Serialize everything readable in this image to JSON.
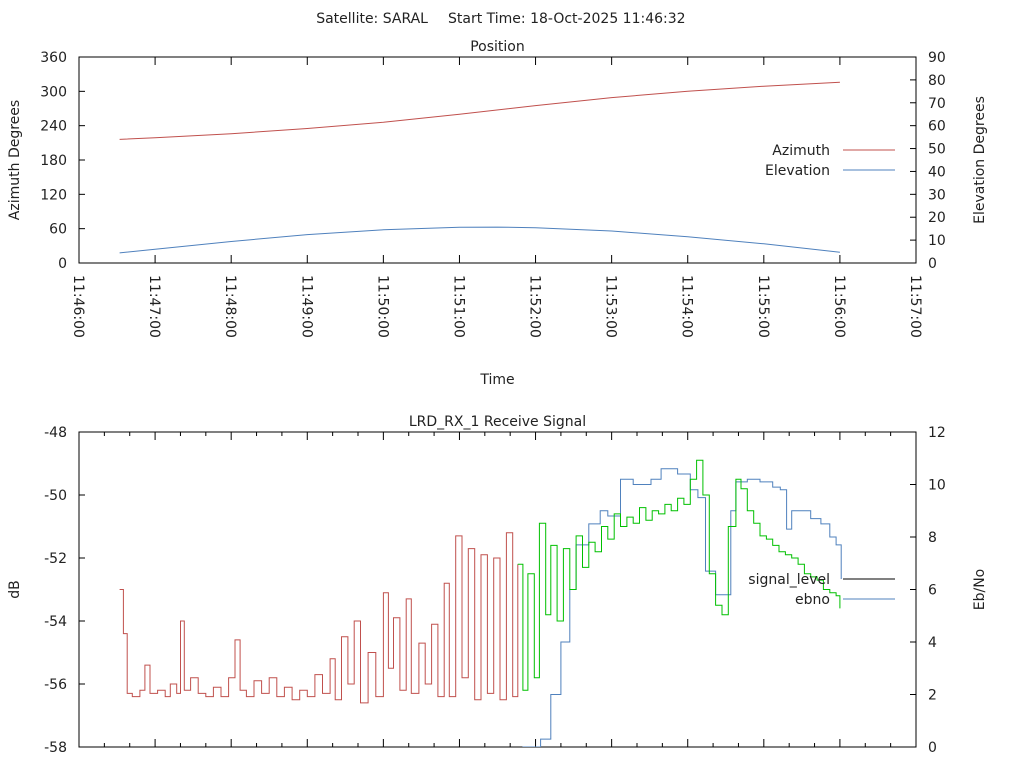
{
  "header": {
    "satellite": "Satellite: SARAL",
    "start_time": "Start Time: 18-Oct-2025 11:46:32"
  },
  "colors": {
    "azimuth": "#c0504d",
    "elevation": "#4f81bd",
    "signal_level_red": "#c0504d",
    "signal_level_green": "#00c000",
    "signal_level_legend": "#000000",
    "ebno": "#4f81bd"
  },
  "chart_data": [
    {
      "type": "line",
      "title": "Position",
      "xlabel": "Time",
      "ylabel": "Azimuth Degrees",
      "y2label": "Elevation Degrees",
      "xrange": [
        "11:46:00",
        "11:57:00"
      ],
      "ylim": [
        0,
        360
      ],
      "y2lim": [
        0,
        90
      ],
      "xticks": [
        "11:46:00",
        "11:47:00",
        "11:48:00",
        "11:49:00",
        "11:50:00",
        "11:51:00",
        "11:52:00",
        "11:53:00",
        "11:54:00",
        "11:55:00",
        "11:56:00",
        "11:57:00"
      ],
      "yticks": [
        "0",
        "60",
        "120",
        "180",
        "240",
        "300",
        "360"
      ],
      "y2ticks": [
        "0",
        "10",
        "20",
        "30",
        "40",
        "50",
        "60",
        "70",
        "80",
        "90"
      ],
      "legend_position": "right",
      "series": [
        {
          "name": "Azimuth",
          "axis": "y",
          "points": [
            [
              "11:46:32",
              216
            ],
            [
              "11:47:00",
              219
            ],
            [
              "11:48:00",
              226
            ],
            [
              "11:49:00",
              235
            ],
            [
              "11:50:00",
              246
            ],
            [
              "11:51:00",
              260
            ],
            [
              "11:52:00",
              275
            ],
            [
              "11:53:00",
              289
            ],
            [
              "11:54:00",
              300
            ],
            [
              "11:55:00",
              309
            ],
            [
              "11:56:00",
              316
            ]
          ]
        },
        {
          "name": "Elevation",
          "axis": "y2",
          "points": [
            [
              "11:46:32",
              4.4
            ],
            [
              "11:47:00",
              6.0
            ],
            [
              "11:48:00",
              9.4
            ],
            [
              "11:49:00",
              12.4
            ],
            [
              "11:50:00",
              14.5
            ],
            [
              "11:51:00",
              15.6
            ],
            [
              "11:51:30",
              15.7
            ],
            [
              "11:52:00",
              15.4
            ],
            [
              "11:53:00",
              14.0
            ],
            [
              "11:54:00",
              11.5
            ],
            [
              "11:55:00",
              8.4
            ],
            [
              "11:56:00",
              4.7
            ]
          ]
        }
      ]
    },
    {
      "type": "line",
      "title": "LRD_RX_1 Receive Signal",
      "ylabel": "dB",
      "y2label": "Eb/No",
      "xrange": [
        "11:46:00",
        "11:57:00"
      ],
      "ylim": [
        -58,
        -48
      ],
      "y2lim": [
        0,
        12
      ],
      "yticks": [
        "-58",
        "-56",
        "-54",
        "-52",
        "-50",
        "-48"
      ],
      "y2ticks": [
        "0",
        "2",
        "4",
        "6",
        "8",
        "10",
        "12"
      ],
      "legend_position": "right",
      "time_origin": "11:46:32",
      "series": [
        {
          "name": "signal_level",
          "axis": "y",
          "points_seconds": [
            [
              0,
              -53.0
            ],
            [
              3,
              -54.4
            ],
            [
              6,
              -56.3
            ],
            [
              10,
              -56.4
            ],
            [
              16,
              -56.2
            ],
            [
              20,
              -55.4
            ],
            [
              24,
              -56.3
            ],
            [
              30,
              -56.2
            ],
            [
              36,
              -56.4
            ],
            [
              40,
              -56.0
            ],
            [
              45,
              -56.3
            ],
            [
              48,
              -54.0
            ],
            [
              51,
              -56.2
            ],
            [
              56,
              -55.8
            ],
            [
              62,
              -56.3
            ],
            [
              68,
              -56.4
            ],
            [
              74,
              -56.1
            ],
            [
              80,
              -56.4
            ],
            [
              86,
              -55.8
            ],
            [
              91,
              -54.6
            ],
            [
              95,
              -56.2
            ],
            [
              100,
              -56.4
            ],
            [
              106,
              -55.9
            ],
            [
              112,
              -56.3
            ],
            [
              118,
              -55.8
            ],
            [
              124,
              -56.4
            ],
            [
              130,
              -56.1
            ],
            [
              136,
              -56.5
            ],
            [
              142,
              -56.2
            ],
            [
              148,
              -56.4
            ],
            [
              154,
              -55.7
            ],
            [
              160,
              -56.3
            ],
            [
              166,
              -55.2
            ],
            [
              170,
              -56.5
            ],
            [
              175,
              -54.5
            ],
            [
              180,
              -56.0
            ],
            [
              185,
              -54.0
            ],
            [
              190,
              -56.6
            ],
            [
              196,
              -55.0
            ],
            [
              202,
              -56.4
            ],
            [
              208,
              -53.1
            ],
            [
              212,
              -55.5
            ],
            [
              216,
              -53.9
            ],
            [
              221,
              -56.2
            ],
            [
              226,
              -53.3
            ],
            [
              230,
              -56.3
            ],
            [
              236,
              -54.7
            ],
            [
              241,
              -56.0
            ],
            [
              246,
              -54.1
            ],
            [
              251,
              -56.4
            ],
            [
              256,
              -52.8
            ],
            [
              260,
              -56.4
            ],
            [
              265,
              -51.3
            ],
            [
              270,
              -55.8
            ],
            [
              275,
              -51.7
            ],
            [
              280,
              -56.5
            ],
            [
              285,
              -51.9
            ],
            [
              290,
              -56.3
            ],
            [
              295,
              -52.0
            ],
            [
              300,
              -56.5
            ],
            [
              305,
              -51.2
            ],
            [
              310,
              -56.4
            ],
            [
              314,
              -52.2
            ],
            [
              318,
              -56.2
            ],
            [
              322,
              -52.5
            ],
            [
              327,
              -55.8
            ],
            [
              331,
              -50.9
            ],
            [
              336,
              -53.8
            ],
            [
              340,
              -51.6
            ],
            [
              345,
              -54.0
            ],
            [
              350,
              -51.7
            ],
            [
              355,
              -53.0
            ],
            [
              360,
              -51.3
            ],
            [
              365,
              -52.3
            ],
            [
              370,
              -51.5
            ],
            [
              375,
              -51.8
            ],
            [
              380,
              -51.0
            ],
            [
              385,
              -51.4
            ],
            [
              390,
              -50.6
            ],
            [
              395,
              -51.0
            ],
            [
              400,
              -50.7
            ],
            [
              405,
              -50.9
            ],
            [
              410,
              -50.4
            ],
            [
              415,
              -50.8
            ],
            [
              420,
              -50.5
            ],
            [
              425,
              -50.6
            ],
            [
              430,
              -50.3
            ],
            [
              435,
              -50.5
            ],
            [
              440,
              -50.1
            ],
            [
              445,
              -50.3
            ],
            [
              450,
              -49.5
            ],
            [
              455,
              -48.9
            ],
            [
              460,
              -50.0
            ],
            [
              465,
              -52.5
            ],
            [
              470,
              -53.5
            ],
            [
              475,
              -53.8
            ],
            [
              480,
              -51.0
            ],
            [
              486,
              -49.5
            ],
            [
              490,
              -49.8
            ],
            [
              495,
              -50.5
            ],
            [
              500,
              -50.9
            ],
            [
              505,
              -51.3
            ],
            [
              510,
              -51.4
            ],
            [
              515,
              -51.6
            ],
            [
              520,
              -51.8
            ],
            [
              525,
              -51.9
            ],
            [
              530,
              -52.0
            ],
            [
              535,
              -52.2
            ],
            [
              540,
              -52.5
            ],
            [
              545,
              -52.6
            ],
            [
              550,
              -52.7
            ],
            [
              555,
              -53.0
            ],
            [
              560,
              -53.1
            ],
            [
              565,
              -53.2
            ],
            [
              568,
              -53.6
            ]
          ],
          "lock_change_seconds": 316
        },
        {
          "name": "ebno",
          "axis": "y2",
          "points_seconds": [
            [
              305,
              -0.5
            ],
            [
              318,
              0
            ],
            [
              332,
              0.3
            ],
            [
              340,
              2
            ],
            [
              348,
              4
            ],
            [
              355,
              6
            ],
            [
              360,
              7.7
            ],
            [
              370,
              8.5
            ],
            [
              379,
              9.0
            ],
            [
              385,
              8.8
            ],
            [
              395,
              10.2
            ],
            [
              405,
              10.0
            ],
            [
              419,
              10.2
            ],
            [
              427,
              10.6
            ],
            [
              440,
              10.4
            ],
            [
              450,
              9.8
            ],
            [
              456,
              9.5
            ],
            [
              462,
              6.7
            ],
            [
              470,
              5.8
            ],
            [
              478,
              5.8
            ],
            [
              482,
              9.0
            ],
            [
              486,
              10.1
            ],
            [
              495,
              10.2
            ],
            [
              505,
              10.1
            ],
            [
              515,
              9.9
            ],
            [
              521,
              9.8
            ],
            [
              526,
              8.3
            ],
            [
              530,
              9.0
            ],
            [
              537,
              9.0
            ],
            [
              545,
              8.7
            ],
            [
              553,
              8.5
            ],
            [
              560,
              8.0
            ],
            [
              565,
              7.7
            ],
            [
              569,
              6.4
            ]
          ]
        }
      ]
    }
  ]
}
